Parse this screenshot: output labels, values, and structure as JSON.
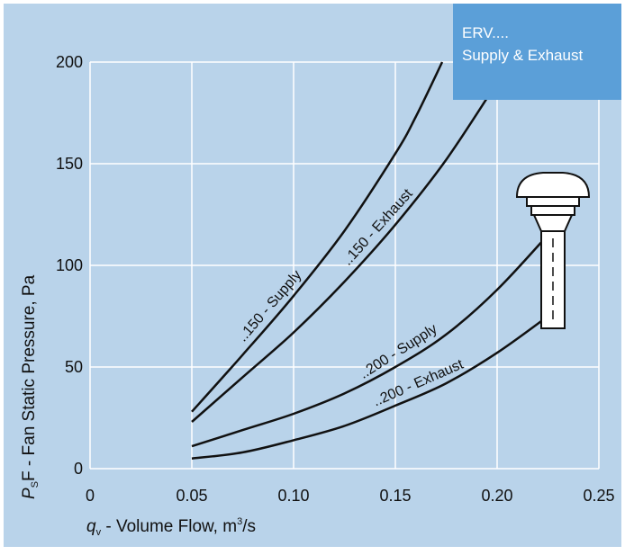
{
  "colors": {
    "background": "#b9d3ea",
    "grid": "#ffffff",
    "curve": "#111111",
    "legend_box": "#5b9fd8"
  },
  "legend_box": {
    "line1": "ERV....",
    "line2": "Supply & Exhaust"
  },
  "icon": "roof-fan-icon",
  "chart_data": {
    "type": "line",
    "title": "",
    "xlabel": {
      "symbol": "q",
      "subscript": "v",
      "text": " - Volume Flow, m",
      "superscript": "3",
      "suffix": "/s"
    },
    "ylabel": {
      "symbol": "P",
      "subscript": "S",
      "text": "F - Fan Static Pressure, Pa"
    },
    "xlim": [
      0,
      0.25
    ],
    "ylim": [
      0,
      200
    ],
    "xticks": [
      "0",
      "0.05",
      "0.10",
      "0.15",
      "0.20",
      "0.25"
    ],
    "yticks": [
      "0",
      "50",
      "100",
      "150",
      "200"
    ],
    "grid": true,
    "series": [
      {
        "name": "..150 - Supply",
        "x": [
          0.05,
          0.075,
          0.1,
          0.125,
          0.15,
          0.16,
          0.173
        ],
        "y": [
          28,
          56,
          85,
          117,
          155,
          173,
          200
        ]
      },
      {
        "name": "..150 - Exhaust",
        "x": [
          0.05,
          0.075,
          0.1,
          0.125,
          0.15,
          0.175,
          0.2
        ],
        "y": [
          23,
          45,
          67,
          92,
          120,
          152,
          190
        ]
      },
      {
        "name": "..200 - Supply",
        "x": [
          0.05,
          0.075,
          0.1,
          0.125,
          0.15,
          0.175,
          0.2,
          0.225
        ],
        "y": [
          11,
          19,
          27,
          37,
          50,
          66,
          88,
          115
        ]
      },
      {
        "name": "..200 - Exhaust",
        "x": [
          0.05,
          0.075,
          0.1,
          0.125,
          0.15,
          0.175,
          0.2,
          0.225
        ],
        "y": [
          5,
          8,
          14,
          21,
          31,
          42,
          57,
          75
        ]
      }
    ]
  }
}
